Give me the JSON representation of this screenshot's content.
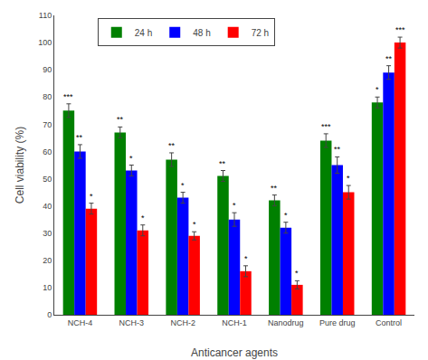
{
  "chart_data": {
    "type": "bar",
    "xlabel": "Anticancer agents",
    "ylabel": "Cell viability (%)",
    "categories": [
      "NCH-4",
      "NCH-3",
      "NCH-2",
      "NCH-1",
      "Nanodrug",
      "Pure drug",
      "Control"
    ],
    "series": [
      {
        "name": "24 h",
        "color": "#008000",
        "values": [
          75,
          67,
          57,
          51,
          42,
          64,
          78
        ],
        "errors": [
          2.5,
          2.0,
          2.5,
          2.0,
          2.0,
          2.5,
          2.0
        ],
        "annotations": [
          "***",
          "**",
          "**",
          "**",
          "**",
          "***",
          "*"
        ]
      },
      {
        "name": "48 h",
        "color": "#0000ff",
        "values": [
          60,
          53,
          43,
          35,
          32,
          55,
          89
        ],
        "errors": [
          2.5,
          2.0,
          2.0,
          2.5,
          2.0,
          3.0,
          2.5
        ],
        "annotations": [
          "**",
          "*",
          "*",
          "*",
          "*",
          "**",
          "**"
        ]
      },
      {
        "name": "72 h",
        "color": "#ff0000",
        "values": [
          39,
          31,
          29,
          16,
          11,
          45,
          100
        ],
        "errors": [
          2.0,
          2.0,
          1.5,
          2.0,
          1.5,
          2.5,
          2.0
        ],
        "annotations": [
          "*",
          "*",
          "*",
          "*",
          "*",
          "*",
          "***"
        ]
      }
    ],
    "ylim": [
      0,
      110
    ],
    "yticks": [
      0,
      10,
      20,
      30,
      40,
      50,
      60,
      70,
      80,
      90,
      100,
      110
    ],
    "grid": false,
    "legend": "upper left"
  }
}
